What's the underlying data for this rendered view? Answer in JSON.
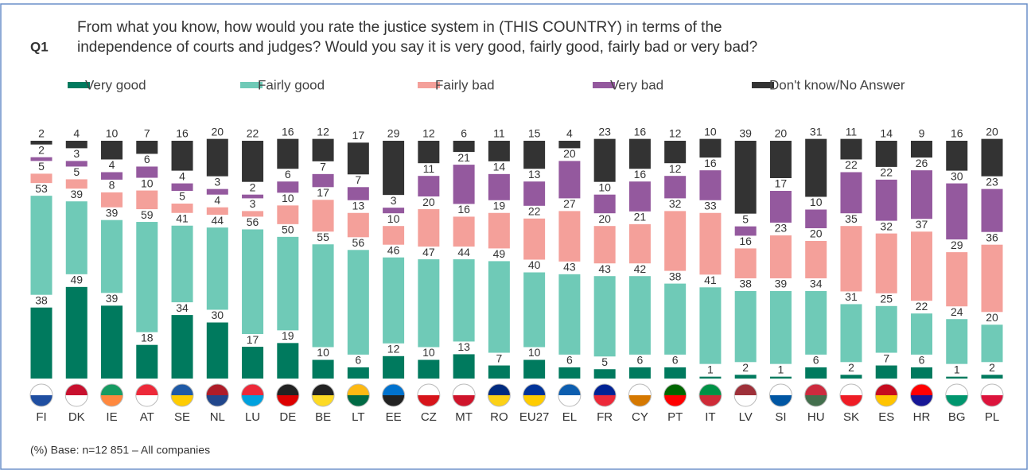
{
  "chart_data": {
    "type": "stacked_bar",
    "question_label": "Q1",
    "title": "From what you know, how would you rate the justice system in (THIS COUNTRY) in terms of the",
    "title_line2": "independence of courts and judges? Would you say it is very good,   fairly good, fairly bad or very bad?",
    "footnote": "(%) Base: n=12 851  – All companies",
    "categories": [
      "FI",
      "DK",
      "IE",
      "AT",
      "SE",
      "NL",
      "LU",
      "DE",
      "BE",
      "LT",
      "EE",
      "CZ",
      "MT",
      "RO",
      "EU27",
      "EL",
      "FR",
      "CY",
      "PT",
      "IT",
      "LV",
      "SI",
      "HU",
      "SK",
      "ES",
      "HR",
      "BG",
      "PL"
    ],
    "series": [
      {
        "name": "Very good",
        "color": "#007a5e",
        "values": [
          38,
          49,
          39,
          18,
          34,
          30,
          17,
          19,
          10,
          6,
          12,
          10,
          13,
          7,
          10,
          6,
          5,
          6,
          6,
          1,
          2,
          1,
          6,
          2,
          7,
          6,
          1,
          2
        ]
      },
      {
        "name": "Fairly good",
        "color": "#6fcab7",
        "values": [
          53,
          39,
          39,
          59,
          41,
          44,
          56,
          50,
          55,
          56,
          46,
          47,
          44,
          49,
          40,
          43,
          43,
          42,
          38,
          41,
          38,
          39,
          34,
          31,
          25,
          22,
          24,
          20
        ]
      },
      {
        "name": "Fairly bad",
        "color": "#f4a09a",
        "values": [
          5,
          5,
          8,
          10,
          5,
          4,
          3,
          10,
          17,
          13,
          10,
          20,
          16,
          19,
          22,
          27,
          20,
          21,
          32,
          33,
          16,
          23,
          20,
          35,
          32,
          37,
          29,
          36
        ]
      },
      {
        "name": "Very bad",
        "color": "#94599e",
        "values": [
          2,
          3,
          4,
          6,
          4,
          3,
          2,
          6,
          7,
          7,
          3,
          11,
          21,
          14,
          13,
          20,
          10,
          16,
          12,
          16,
          5,
          17,
          10,
          22,
          22,
          26,
          30,
          23
        ]
      },
      {
        "name": "Don't know/No Answer",
        "color": "#333333",
        "values": [
          2,
          4,
          10,
          7,
          16,
          20,
          22,
          16,
          12,
          17,
          29,
          12,
          6,
          11,
          15,
          4,
          23,
          16,
          12,
          10,
          39,
          20,
          31,
          11,
          14,
          9,
          16,
          20
        ]
      }
    ]
  }
}
